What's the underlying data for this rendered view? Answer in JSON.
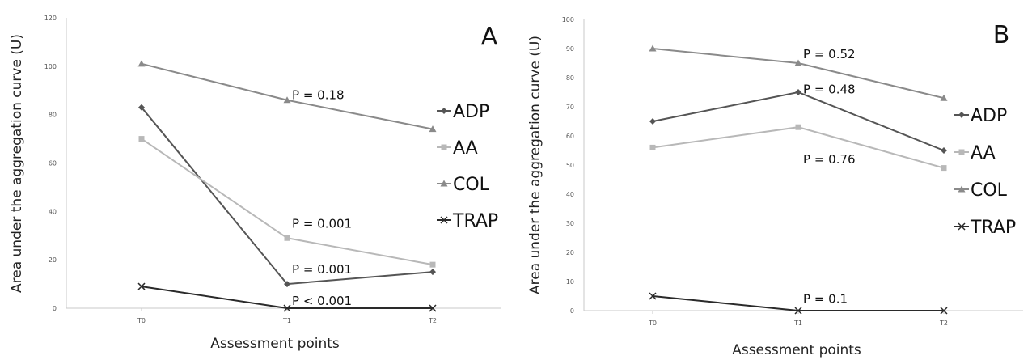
{
  "chart_data": [
    {
      "type": "line",
      "panel_label": "A",
      "xlabel": "Assessment points",
      "ylabel": "Area under the aggregation curve (U)",
      "categories": [
        "T0",
        "T1",
        "T2"
      ],
      "ylim": [
        0,
        120
      ],
      "yticks": [
        0,
        20,
        40,
        60,
        80,
        100,
        120
      ],
      "grid": false,
      "legend": "right",
      "series": [
        {
          "name": "ADP",
          "values": [
            83,
            10,
            15
          ],
          "color": "#555555",
          "marker": "diamond"
        },
        {
          "name": "AA",
          "values": [
            70,
            29,
            18
          ],
          "color": "#b8b8b8",
          "marker": "square"
        },
        {
          "name": "COL",
          "values": [
            101,
            86,
            74
          ],
          "color": "#8a8a8a",
          "marker": "triangle"
        },
        {
          "name": "TRAP",
          "values": [
            9,
            0,
            0
          ],
          "color": "#2a2a2a",
          "marker": "x"
        }
      ],
      "annotations": [
        {
          "text": "P = 0.18",
          "x": "T1",
          "y": 88
        },
        {
          "text": "P = 0.001",
          "x": "T1",
          "y": 35
        },
        {
          "text": "P = 0.001",
          "x": "T1",
          "y": 16
        },
        {
          "text": "P < 0.001",
          "x": "T1",
          "y": 3
        }
      ]
    },
    {
      "type": "line",
      "panel_label": "B",
      "xlabel": "Assessment points",
      "ylabel": "Area under the aggregation curve (U)",
      "categories": [
        "T0",
        "T1",
        "T2"
      ],
      "ylim": [
        0,
        100
      ],
      "yticks": [
        0,
        10,
        20,
        30,
        40,
        50,
        60,
        70,
        80,
        90,
        100
      ],
      "grid": false,
      "legend": "right",
      "series": [
        {
          "name": "ADP",
          "values": [
            65,
            75,
            55
          ],
          "color": "#555555",
          "marker": "diamond"
        },
        {
          "name": "AA",
          "values": [
            56,
            63,
            49
          ],
          "color": "#b8b8b8",
          "marker": "square"
        },
        {
          "name": "COL",
          "values": [
            90,
            85,
            73
          ],
          "color": "#8a8a8a",
          "marker": "triangle"
        },
        {
          "name": "TRAP",
          "values": [
            5,
            0,
            0
          ],
          "color": "#2a2a2a",
          "marker": "x"
        }
      ],
      "annotations": [
        {
          "text": "P = 0.52",
          "x": "T1",
          "y": 88
        },
        {
          "text": "P = 0.48",
          "x": "T1",
          "y": 76
        },
        {
          "text": "P = 0.76",
          "x": "T1",
          "y": 52
        },
        {
          "text": "P = 0.1",
          "x": "T1",
          "y": 4
        }
      ]
    }
  ]
}
